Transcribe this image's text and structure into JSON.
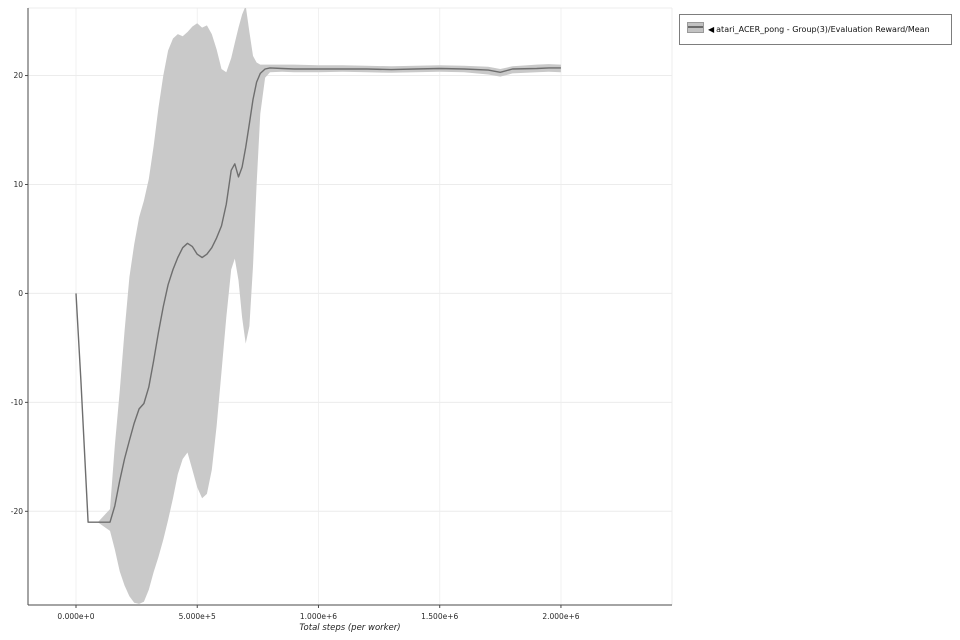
{
  "legend": {
    "marker": "◀",
    "label": "atari_ACER_pong - Group(3)/Evaluation Reward/Mean"
  },
  "chart_data": {
    "type": "line",
    "title": "",
    "xlabel": "Total steps (per worker)",
    "ylabel": "",
    "xlim": [
      -198000,
      2458000
    ],
    "ylim": [
      -28.6,
      26.2
    ],
    "grid": true,
    "legend_position": "top-right",
    "x_ticks": [
      {
        "value": 0,
        "label": "0.000e+0"
      },
      {
        "value": 500000,
        "label": "5.000e+5"
      },
      {
        "value": 1000000,
        "label": "1.000e+6"
      },
      {
        "value": 1500000,
        "label": "1.500e+6"
      },
      {
        "value": 2000000,
        "label": "2.000e+6"
      }
    ],
    "y_ticks": [
      {
        "value": -20,
        "label": "-20"
      },
      {
        "value": -10,
        "label": "-10"
      },
      {
        "value": 0,
        "label": "0"
      },
      {
        "value": 10,
        "label": "10"
      },
      {
        "value": 20,
        "label": "20"
      }
    ],
    "series": [
      {
        "name": "atari_ACER_pong - Group(3)/Evaluation Reward/Mean",
        "line_color": "#6e6e6e",
        "band_color": "#c9c9c9",
        "x": [
          0,
          20000,
          50000,
          90000,
          140000,
          160000,
          180000,
          200000,
          220000,
          240000,
          260000,
          280000,
          300000,
          320000,
          340000,
          360000,
          380000,
          400000,
          420000,
          440000,
          460000,
          480000,
          500000,
          520000,
          540000,
          560000,
          580000,
          600000,
          620000,
          640000,
          655000,
          670000,
          685000,
          700000,
          715000,
          730000,
          745000,
          760000,
          780000,
          800000,
          850000,
          900000,
          1000000,
          1100000,
          1200000,
          1300000,
          1400000,
          1500000,
          1600000,
          1700000,
          1750000,
          1800000,
          1900000,
          1950000,
          2000000
        ],
        "mean": [
          0,
          -8,
          -21,
          -21,
          -21,
          -19.5,
          -17.2,
          -15.2,
          -13.5,
          -11.9,
          -10.6,
          -10.1,
          -8.6,
          -6.2,
          -3.6,
          -1.2,
          0.8,
          2.2,
          3.3,
          4.2,
          4.6,
          4.3,
          3.6,
          3.3,
          3.6,
          4.2,
          5.1,
          6.2,
          8.2,
          11.3,
          11.9,
          10.7,
          11.6,
          13.4,
          15.6,
          17.8,
          19.4,
          20.2,
          20.6,
          20.7,
          20.65,
          20.6,
          20.6,
          20.6,
          20.6,
          20.55,
          20.6,
          20.65,
          20.6,
          20.5,
          20.3,
          20.6,
          20.65,
          20.7,
          20.7
        ],
        "lower": [
          0,
          -8,
          -21,
          -21,
          -21.8,
          -23.5,
          -25.5,
          -26.8,
          -27.8,
          -28.4,
          -28.5,
          -28.3,
          -27.2,
          -25.6,
          -24.2,
          -22.6,
          -20.8,
          -18.8,
          -16.6,
          -15.2,
          -14.6,
          -16.2,
          -17.8,
          -18.8,
          -18.4,
          -16.2,
          -12.2,
          -7.2,
          -2.2,
          2.2,
          3.2,
          1.2,
          -2.2,
          -4.6,
          -3.0,
          2.5,
          10,
          16.5,
          19.8,
          20.3,
          20.35,
          20.3,
          20.3,
          20.35,
          20.3,
          20.25,
          20.3,
          20.35,
          20.3,
          20.1,
          19.9,
          20.2,
          20.3,
          20.35,
          20.3
        ],
        "upper": [
          0,
          -8,
          -21,
          -21,
          -19.8,
          -14,
          -9,
          -3.5,
          1.5,
          4.5,
          7,
          8.5,
          10.5,
          13.5,
          17,
          20,
          22.3,
          23.4,
          23.8,
          23.6,
          24,
          24.5,
          24.8,
          24.4,
          24.6,
          23.8,
          22.4,
          20.6,
          20.3,
          21.6,
          23,
          24.4,
          25.6,
          26.4,
          24,
          21.8,
          21.2,
          21.0,
          21.0,
          21.0,
          21.0,
          21.0,
          20.95,
          20.95,
          20.9,
          20.85,
          20.9,
          20.95,
          20.9,
          20.8,
          20.6,
          20.85,
          21.0,
          21.05,
          21.0
        ]
      }
    ]
  }
}
